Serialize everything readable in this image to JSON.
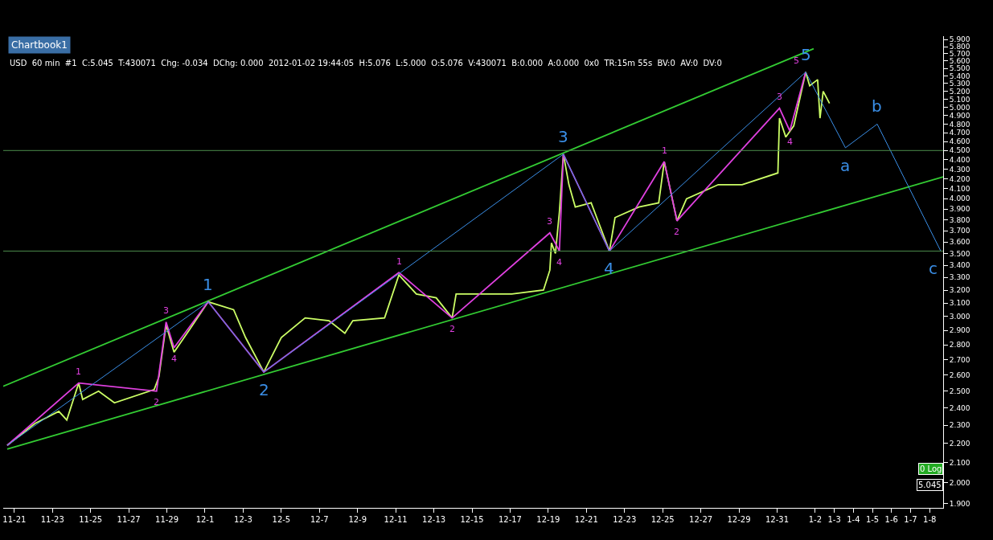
{
  "chart_data": {
    "type": "line",
    "title": "Chartbook1",
    "subtitle": "USD  60 min  #1  C:5.045  T:430071  Chg: -0.034  DChg: 0.000  2012-01-02 19:44:05  H:5.076  L:5.000  O:5.076  V:430071  B:0.000  A:0.000  0x0  TR:15m 55s  BV:0  AV:0  DV:0",
    "annotations": [
      "5.045",
      "0 Log",
      {
        "text": "1",
        "x": "2011-12-01T04:00",
        "y": 3.11
      },
      {
        "text": "2",
        "x": "2011-12-04T02:00",
        "y": 2.62
      },
      {
        "text": "3",
        "x": "2011-12-19T19:00",
        "y": 4.46
      },
      {
        "text": "4",
        "x": "2011-12-22T05:00",
        "y": 3.52
      },
      {
        "text": "5",
        "x": "2012-01-01T12:00",
        "y": 5.45
      },
      {
        "text": "a",
        "x": "2012-01-03T14:00",
        "y": 4.53
      },
      {
        "text": "b",
        "x": "2012-01-05T06:00",
        "y": 4.8
      },
      {
        "text": "c",
        "x": "2012-01-08T14:00",
        "y": 3.52
      },
      {
        "text": "1",
        "x": "2011-11-24T09:00",
        "y": 2.55
      },
      {
        "text": "2",
        "x": "2011-11-28T11:00",
        "y": 2.5
      },
      {
        "text": "3",
        "x": "2011-11-28T23:00",
        "y": 2.96
      },
      {
        "text": "4",
        "x": "2011-11-29T09:00",
        "y": 2.78
      },
      {
        "text": "1",
        "x": "2011-12-11T04:00",
        "y": 3.34
      },
      {
        "text": "2",
        "x": "2011-12-13T23:00",
        "y": 2.99
      },
      {
        "text": "3",
        "x": "2011-12-19T02:00",
        "y": 3.68
      },
      {
        "text": "4",
        "x": "2011-12-19T14:00",
        "y": 3.52
      },
      {
        "text": "1",
        "x": "2011-12-25T02:00",
        "y": 4.38
      },
      {
        "text": "2",
        "x": "2011-12-25T18:00",
        "y": 3.79
      },
      {
        "text": "3",
        "x": "2011-12-31T03:00",
        "y": 4.99
      },
      {
        "text": "4",
        "x": "2011-12-31T16:00",
        "y": 4.72
      },
      {
        "text": "5",
        "x": "2012-01-01T12:00",
        "y": 5.45
      }
    ],
    "log": true,
    "grid": false,
    "marker": "none",
    "line_style": "solid",
    "xlim": [
      "2011-11-20T10:00",
      "2012-01-08T17:00"
    ],
    "xticks": [
      {
        "value": "2011-11-21",
        "label": "11-21"
      },
      {
        "value": "2011-11-23",
        "label": "11-23"
      },
      {
        "value": "2011-11-25",
        "label": "11-25"
      },
      {
        "value": "2011-11-27",
        "label": "11-27"
      },
      {
        "value": "2011-11-29",
        "label": "11-29"
      },
      {
        "value": "2011-12-01",
        "label": "12-1"
      },
      {
        "value": "2011-12-03",
        "label": "12-3"
      },
      {
        "value": "2011-12-05",
        "label": "12-5"
      },
      {
        "value": "2011-12-07",
        "label": "12-7"
      },
      {
        "value": "2011-12-09",
        "label": "12-9"
      },
      {
        "value": "2011-12-11",
        "label": "12-11"
      },
      {
        "value": "2011-12-13",
        "label": "12-13"
      },
      {
        "value": "2011-12-15",
        "label": "12-15"
      },
      {
        "value": "2011-12-17",
        "label": "12-17"
      },
      {
        "value": "2011-12-19",
        "label": "12-19"
      },
      {
        "value": "2011-12-21",
        "label": "12-21"
      },
      {
        "value": "2011-12-23",
        "label": "12-23"
      },
      {
        "value": "2011-12-25",
        "label": "12-25"
      },
      {
        "value": "2011-12-27",
        "label": "12-27"
      },
      {
        "value": "2011-12-29",
        "label": "12-29"
      },
      {
        "value": "2011-12-31",
        "label": "12-31"
      },
      {
        "value": "2012-01-02",
        "label": "1-2"
      },
      {
        "value": "2012-01-03",
        "label": "1-3"
      },
      {
        "value": "2012-01-04",
        "label": "1-4"
      },
      {
        "value": "2012-01-05",
        "label": "1-5"
      },
      {
        "value": "2012-01-06",
        "label": "1-6"
      },
      {
        "value": "2012-01-07",
        "label": "1-7"
      },
      {
        "value": "2012-01-08",
        "label": "1-8"
      }
    ],
    "ylim": [
      1.88,
      5.95
    ],
    "yticks": [
      {
        "value": 1.9,
        "label": "1.900"
      },
      {
        "value": 2.0,
        "label": "2.000"
      },
      {
        "value": 2.1,
        "label": "2.100"
      },
      {
        "value": 2.2,
        "label": "2.200"
      },
      {
        "value": 2.3,
        "label": "2.300"
      },
      {
        "value": 2.4,
        "label": "2.400"
      },
      {
        "value": 2.5,
        "label": "2.500"
      },
      {
        "value": 2.6,
        "label": "2.600"
      },
      {
        "value": 2.7,
        "label": "2.700"
      },
      {
        "value": 2.8,
        "label": "2.800"
      },
      {
        "value": 2.9,
        "label": "2.900"
      },
      {
        "value": 3.0,
        "label": "3.000"
      },
      {
        "value": 3.1,
        "label": "3.100"
      },
      {
        "value": 3.2,
        "label": "3.200"
      },
      {
        "value": 3.3,
        "label": "3.300"
      },
      {
        "value": 3.4,
        "label": "3.400"
      },
      {
        "value": 3.5,
        "label": "3.500"
      },
      {
        "value": 3.6,
        "label": "3.600"
      },
      {
        "value": 3.7,
        "label": "3.700"
      },
      {
        "value": 3.8,
        "label": "3.800"
      },
      {
        "value": 3.9,
        "label": "3.900"
      },
      {
        "value": 4.0,
        "label": "4.000"
      },
      {
        "value": 4.1,
        "label": "4.100"
      },
      {
        "value": 4.2,
        "label": "4.200"
      },
      {
        "value": 4.3,
        "label": "4.300"
      },
      {
        "value": 4.4,
        "label": "4.400"
      },
      {
        "value": 4.5,
        "label": "4.500"
      },
      {
        "value": 4.6,
        "label": "4.600"
      },
      {
        "value": 4.7,
        "label": "4.700"
      },
      {
        "value": 4.8,
        "label": "4.800"
      },
      {
        "value": 4.9,
        "label": "4.900"
      },
      {
        "value": 5.0,
        "label": "5.000"
      },
      {
        "value": 5.1,
        "label": "5.100"
      },
      {
        "value": 5.2,
        "label": "5.200"
      },
      {
        "value": 5.3,
        "label": "5.300"
      },
      {
        "value": 5.4,
        "label": "5.400"
      },
      {
        "value": 5.5,
        "label": "5.500"
      },
      {
        "value": 5.6,
        "label": "5.600"
      },
      {
        "value": 5.7,
        "label": "5.700"
      },
      {
        "value": 5.8,
        "label": "5.800"
      },
      {
        "value": 5.9,
        "label": "5.900"
      }
    ],
    "ref_lines": [
      {
        "axis": "y",
        "value": 4.5,
        "color": "#4c8c4c"
      },
      {
        "axis": "y",
        "value": 3.52,
        "color": "#4c8c4c"
      }
    ],
    "series": [
      {
        "color": "#33cc33",
        "x": [
          "2011-11-20T10:00",
          "2012-01-01T22:00"
        ],
        "values": [
          2.53,
          5.77
        ]
      },
      {
        "color": "#33cc33",
        "x": [
          "2011-11-20T15:00",
          "2012-01-08T17:00"
        ],
        "values": [
          2.17,
          4.22
        ]
      },
      {
        "color": "#ccff66",
        "x": [
          "2011-11-20T15:00",
          "2011-11-22T02:00",
          "2011-11-23T08:00",
          "2011-11-23T18:00",
          "2011-11-24T09:00",
          "2011-11-24T14:00",
          "2011-11-25T10:00",
          "2011-11-26T06:00",
          "2011-11-28T08:00",
          "2011-11-28T14:00",
          "2011-11-28T23:00",
          "2011-11-29T09:00",
          "2011-11-30T05:00",
          "2011-12-01T04:00",
          "2011-12-02T12:00",
          "2011-12-03T03:00",
          "2011-12-04T02:00",
          "2011-12-05T00:00",
          "2011-12-06T06:00",
          "2011-12-07T12:00",
          "2011-12-08T08:00",
          "2011-12-08T18:00",
          "2011-12-10T10:00",
          "2011-12-11T04:00",
          "2011-12-12T02:00",
          "2011-12-13T03:00",
          "2011-12-13T23:00",
          "2011-12-14T04:00",
          "2011-12-15T10:00",
          "2011-12-17T02:00",
          "2011-12-18T18:00",
          "2011-12-19T02:00",
          "2011-12-19T04:00",
          "2011-12-19T09:00",
          "2011-12-19T14:00",
          "2011-12-19T19:00",
          "2011-12-20T02:00",
          "2011-12-20T10:00",
          "2011-12-21T06:00",
          "2011-12-22T05:00",
          "2011-12-22T12:00",
          "2011-12-23T18:00",
          "2011-12-24T19:00",
          "2011-12-25T02:00",
          "2011-12-25T18:00",
          "2011-12-26T06:00",
          "2011-12-27T22:00",
          "2011-12-29T04:00",
          "2011-12-31T01:00",
          "2011-12-31T03:00",
          "2011-12-31T11:00",
          "2011-12-31T21:00",
          "2012-01-01T12:00",
          "2012-01-01T17:00",
          "2012-01-02T03:00",
          "2012-01-02T06:00",
          "2012-01-02T10:00",
          "2012-01-02T18:00"
        ],
        "values": [
          2.19,
          2.31,
          2.38,
          2.33,
          2.55,
          2.45,
          2.5,
          2.43,
          2.51,
          2.59,
          2.94,
          2.75,
          2.91,
          3.11,
          3.05,
          2.85,
          2.62,
          2.85,
          2.99,
          2.97,
          2.88,
          2.97,
          2.99,
          3.32,
          3.17,
          3.14,
          2.99,
          3.17,
          3.17,
          3.17,
          3.2,
          3.36,
          3.59,
          3.5,
          3.87,
          4.46,
          4.14,
          3.92,
          3.96,
          3.52,
          3.82,
          3.92,
          3.96,
          4.38,
          3.79,
          4.0,
          4.14,
          4.14,
          4.26,
          4.87,
          4.65,
          4.78,
          5.45,
          5.27,
          5.35,
          4.87,
          5.2,
          5.05
        ]
      },
      {
        "color": "#e040e0",
        "x": [
          "2011-11-20T15:00",
          "2011-11-24T09:00",
          "2011-11-28T11:00",
          "2011-11-28T23:00",
          "2011-11-29T09:00",
          "2011-12-01T04:00",
          "2011-12-04T02:00",
          "2011-12-11T04:00",
          "2011-12-13T23:00",
          "2011-12-19T02:00",
          "2011-12-19T14:00",
          "2011-12-19T19:00",
          "2011-12-22T05:00",
          "2011-12-25T02:00",
          "2011-12-25T18:00",
          "2011-12-31T03:00",
          "2011-12-31T16:00",
          "2012-01-01T12:00"
        ],
        "values": [
          2.19,
          2.55,
          2.5,
          2.96,
          2.78,
          3.11,
          2.62,
          3.34,
          2.99,
          3.68,
          3.52,
          4.46,
          3.52,
          4.38,
          3.79,
          4.99,
          4.72,
          5.45
        ]
      },
      {
        "color": "#3a8ee6",
        "x": [
          "2011-11-20T15:00",
          "2011-12-01T04:00",
          "2011-12-04T02:00",
          "2011-12-19T19:00",
          "2011-12-22T05:00",
          "2012-01-01T12:00",
          "2012-01-03T14:00",
          "2012-01-05T06:00",
          "2012-01-08T14:00"
        ],
        "values": [
          2.19,
          3.11,
          2.62,
          4.46,
          3.52,
          5.45,
          4.53,
          4.8,
          3.52
        ]
      }
    ]
  }
}
